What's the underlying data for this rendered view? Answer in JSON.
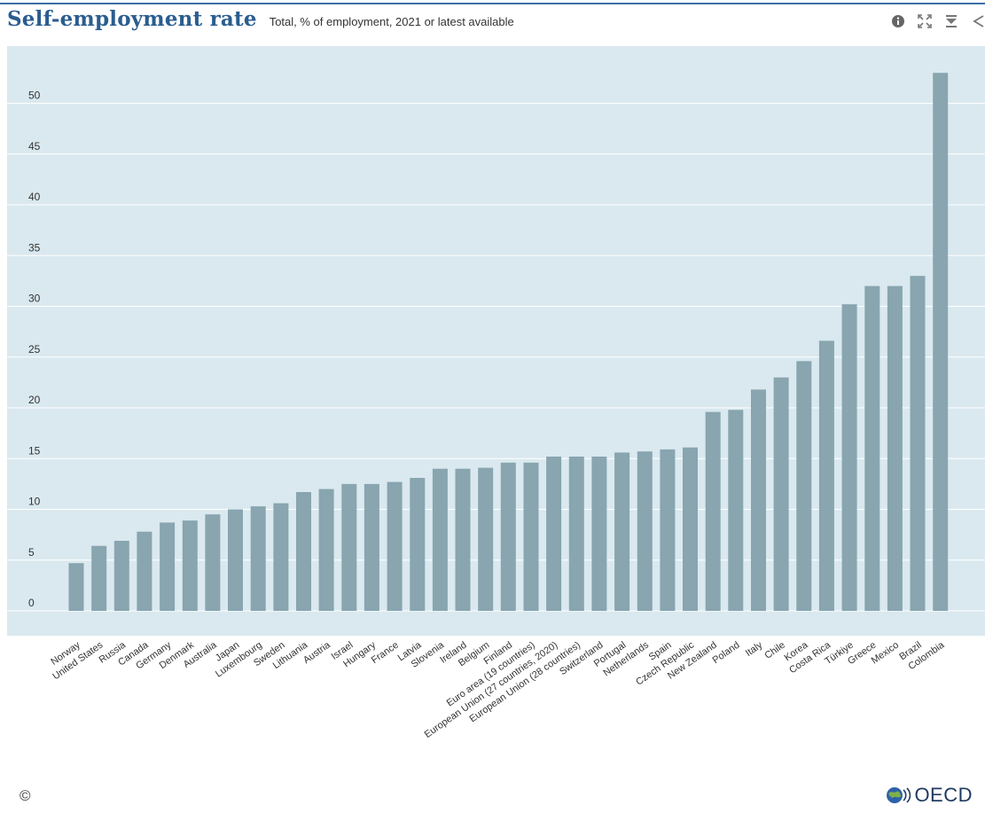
{
  "header": {
    "title": "Self-employment rate",
    "subtitle": "Total, % of employment, 2021 or latest available"
  },
  "toolbar": {
    "icons": [
      "info-icon",
      "expand-icon",
      "download-icon",
      "share-icon"
    ]
  },
  "footer": {
    "copyright": "©",
    "logo_text": "OECD"
  },
  "colors": {
    "accent": "#2a5d8f",
    "plot_background": "#dae9ef",
    "bar": "#88a5b0",
    "grid": "#ffffff"
  },
  "chart_data": {
    "type": "bar",
    "title": "Self-employment rate",
    "subtitle": "Total, % of employment, 2021 or latest available",
    "xlabel": "",
    "ylabel": "",
    "ylim": [
      0,
      53
    ],
    "yticks": [
      0,
      5,
      10,
      15,
      20,
      25,
      30,
      35,
      40,
      45,
      50
    ],
    "grid": true,
    "categories": [
      "Norway",
      "United States",
      "Russia",
      "Canada",
      "Germany",
      "Denmark",
      "Australia",
      "Japan",
      "Luxembourg",
      "Sweden",
      "Lithuania",
      "Austria",
      "Israel",
      "Hungary",
      "France",
      "Latvia",
      "Slovenia",
      "Ireland",
      "Belgium",
      "Finland",
      "Euro area (19 countries)",
      "European Union (27 countries, 2020)",
      "European Union (28 countries)",
      "Switzerland",
      "Portugal",
      "Netherlands",
      "Spain",
      "Czech Republic",
      "New Zealand",
      "Poland",
      "Italy",
      "Chile",
      "Korea",
      "Costa Rica",
      "Türkiye",
      "Greece",
      "Mexico",
      "Brazil",
      "Colombia"
    ],
    "values": [
      4.7,
      6.4,
      6.9,
      7.8,
      8.7,
      8.9,
      9.5,
      10.0,
      10.3,
      10.6,
      11.7,
      12.0,
      12.5,
      12.5,
      12.7,
      13.1,
      14.0,
      14.0,
      14.1,
      14.6,
      14.6,
      15.2,
      15.2,
      15.2,
      15.6,
      15.7,
      15.9,
      16.1,
      19.6,
      19.8,
      21.8,
      23.0,
      24.6,
      26.6,
      30.2,
      32.0,
      32.0,
      33.0,
      53.0
    ]
  }
}
